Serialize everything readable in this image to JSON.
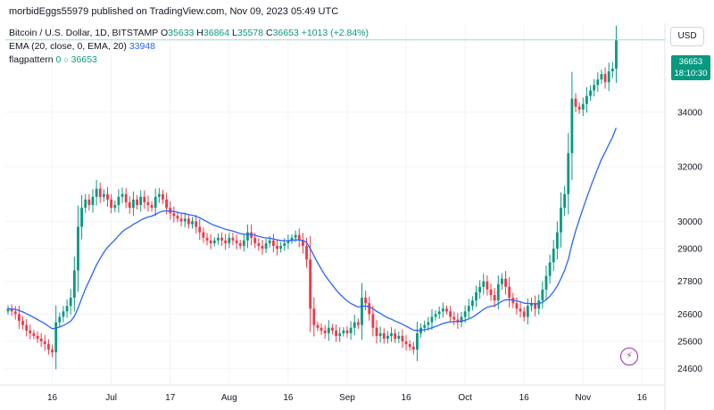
{
  "header": {
    "source_line": "morbidEggs55979 published on TradingView.com, Nov 09, 2023 05:49 UTC"
  },
  "legend": {
    "symbol": "Bitcoin / U.S. Dollar, 1D, BITSTAMP",
    "open_label": "O",
    "open": "35633",
    "high_label": "H",
    "high": "36864",
    "low_label": "L",
    "low": "35578",
    "close_label": "C",
    "close": "36653",
    "change": "+1013 (+2.84%)",
    "ema_label": "EMA (20, close, 0, EMA, 20)",
    "ema_value": "33948",
    "flag_label": "flagpattern",
    "flag_zero": "0",
    "flag_value": "36653"
  },
  "price_axis": {
    "currency": "USD",
    "last_price": "36653",
    "countdown": "18:10:30"
  },
  "colors": {
    "up": "#089981",
    "down": "#f23645",
    "ema": "#2962ff",
    "flagline": "#9ad9cf",
    "grid": "#f0f3fa",
    "icon": "#9c27b0"
  },
  "icons": {
    "alert": "lightning-bolt-icon"
  },
  "chart_data": {
    "type": "candlestick",
    "y_ticks": [
      24600,
      25600,
      26600,
      27800,
      29000,
      30000,
      32000,
      34000
    ],
    "y_range": [
      24000,
      37200
    ],
    "x_ticks": [
      "16",
      "Jul",
      "17",
      "Aug",
      "16",
      "Sep",
      "16",
      "Oct",
      "16",
      "Nov",
      "16"
    ],
    "x_tick_index": [
      12,
      28,
      44,
      60,
      76,
      92,
      108,
      124,
      140,
      156,
      172
    ],
    "last_candle_index": 163,
    "ema_last": 33948,
    "flag_level": 36653,
    "close_series": [
      26800,
      26700,
      26600,
      26350,
      26200,
      26000,
      25900,
      25800,
      25700,
      25600,
      25500,
      25300,
      25200,
      26300,
      26500,
      26700,
      26900,
      27200,
      28200,
      29800,
      30500,
      30800,
      30600,
      30900,
      31200,
      30900,
      31000,
      30800,
      30500,
      30600,
      30900,
      31000,
      30700,
      30500,
      30800,
      30600,
      30900,
      30700,
      30600,
      30500,
      30900,
      31000,
      30800,
      30500,
      30300,
      30200,
      30100,
      30000,
      30100,
      29900,
      30000,
      29800,
      29600,
      29400,
      29300,
      29200,
      29300,
      29400,
      29300,
      29200,
      29400,
      29300,
      29200,
      29100,
      29300,
      29600,
      29400,
      29200,
      29100,
      29000,
      29200,
      29300,
      29100,
      29000,
      29100,
      29200,
      29300,
      29400,
      29500,
      29300,
      29100,
      28600,
      26800,
      26200,
      26100,
      26000,
      25900,
      26100,
      26000,
      25800,
      25900,
      26000,
      25900,
      26100,
      26300,
      26200,
      27200,
      27000,
      26600,
      26100,
      25800,
      25900,
      25700,
      25800,
      25900,
      25700,
      25800,
      25600,
      25500,
      25400,
      25300,
      25900,
      26100,
      26200,
      26300,
      26500,
      26600,
      26700,
      26800,
      26700,
      26500,
      26400,
      26300,
      26500,
      26700,
      26900,
      27100,
      27400,
      27600,
      27800,
      27500,
      27300,
      27100,
      27700,
      27900,
      27600,
      27200,
      27000,
      26800,
      26700,
      26500,
      26900,
      27000,
      26800,
      27100,
      27500,
      28000,
      28500,
      29000,
      29600,
      30500,
      31000,
      32500,
      34500,
      34200,
      34100,
      34300,
      34600,
      34800,
      35000,
      35200,
      35400,
      35100,
      35500,
      35600,
      36653
    ]
  }
}
